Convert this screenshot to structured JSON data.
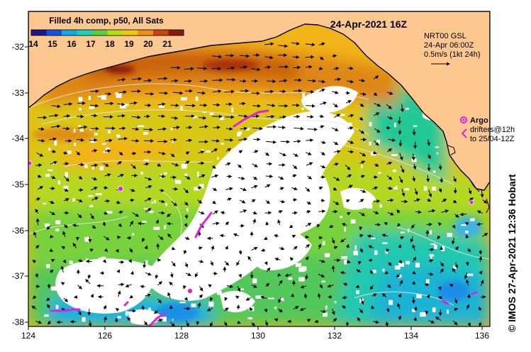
{
  "title": {
    "product": "Filled 4h comp, p50, All Sats",
    "datetime": "24-Apr-2021 16Z"
  },
  "colorbar": {
    "ticks": [
      "14",
      "15",
      "16",
      "17",
      "18",
      "19",
      "20",
      "21"
    ],
    "colors": [
      "#1f1590",
      "#1552e0",
      "#13a9e6",
      "#1fd0b4",
      "#58d23c",
      "#b4df10",
      "#f0c80c",
      "#f08c1a",
      "#c8460e",
      "#8a1c08"
    ]
  },
  "currents_legend": {
    "line1": "NRT00 GSL",
    "line2": "24-Apr 06:00Z",
    "line3": "0.5m/s (1kt 24h)"
  },
  "argo_legend": {
    "label": "Argo",
    "line1": "drifters@12h",
    "line2": "to 25/04-12Z",
    "marker_color": "#e020e0"
  },
  "axes": {
    "x_ticks": [
      "124",
      "126",
      "128",
      "130",
      "132",
      "134",
      "136"
    ],
    "y_ticks": [
      "-32",
      "-33",
      "-34",
      "-35",
      "-36",
      "-37",
      "-38"
    ]
  },
  "credit": "© IMOS 27-Apr-2021 12:36 Hobart",
  "colors": {
    "land": "#fcc890",
    "no_data": "#ffffff"
  }
}
